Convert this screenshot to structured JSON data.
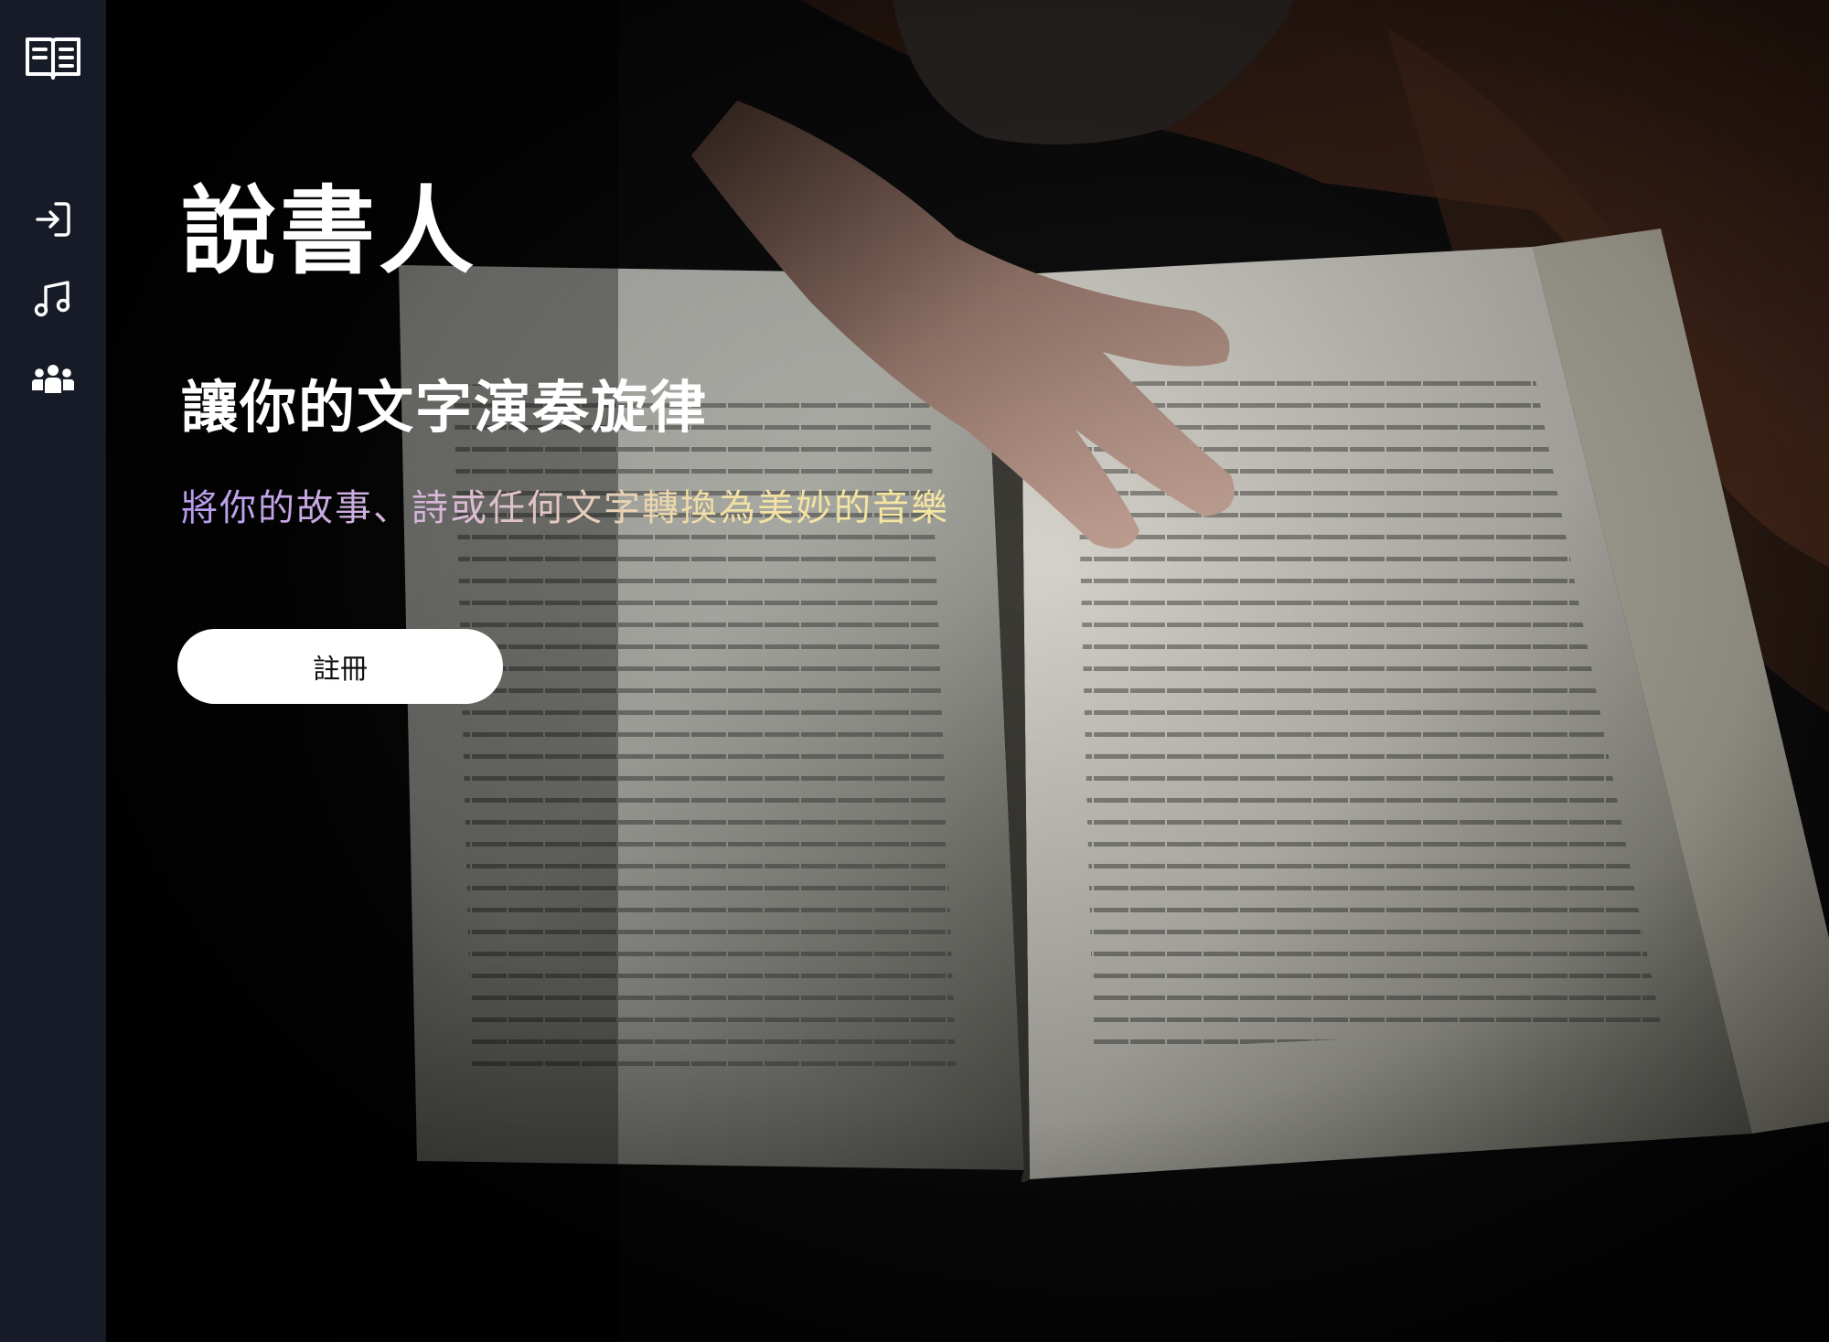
{
  "sidebar": {
    "icons": [
      "open-book-icon",
      "login-icon",
      "music-note-icon",
      "community-icon"
    ]
  },
  "hero": {
    "title": "說書人",
    "tagline": "讓你的文字演奏旋律",
    "subtitle": "將你的故事、詩或任何文字轉換為美妙的音樂",
    "signup_label": "註冊"
  },
  "colors": {
    "sidebar_bg": "#161b27",
    "subtitle_gradient_start": "#b79cf0",
    "subtitle_gradient_end": "#f6e7a0",
    "button_bg": "#ffffff"
  }
}
